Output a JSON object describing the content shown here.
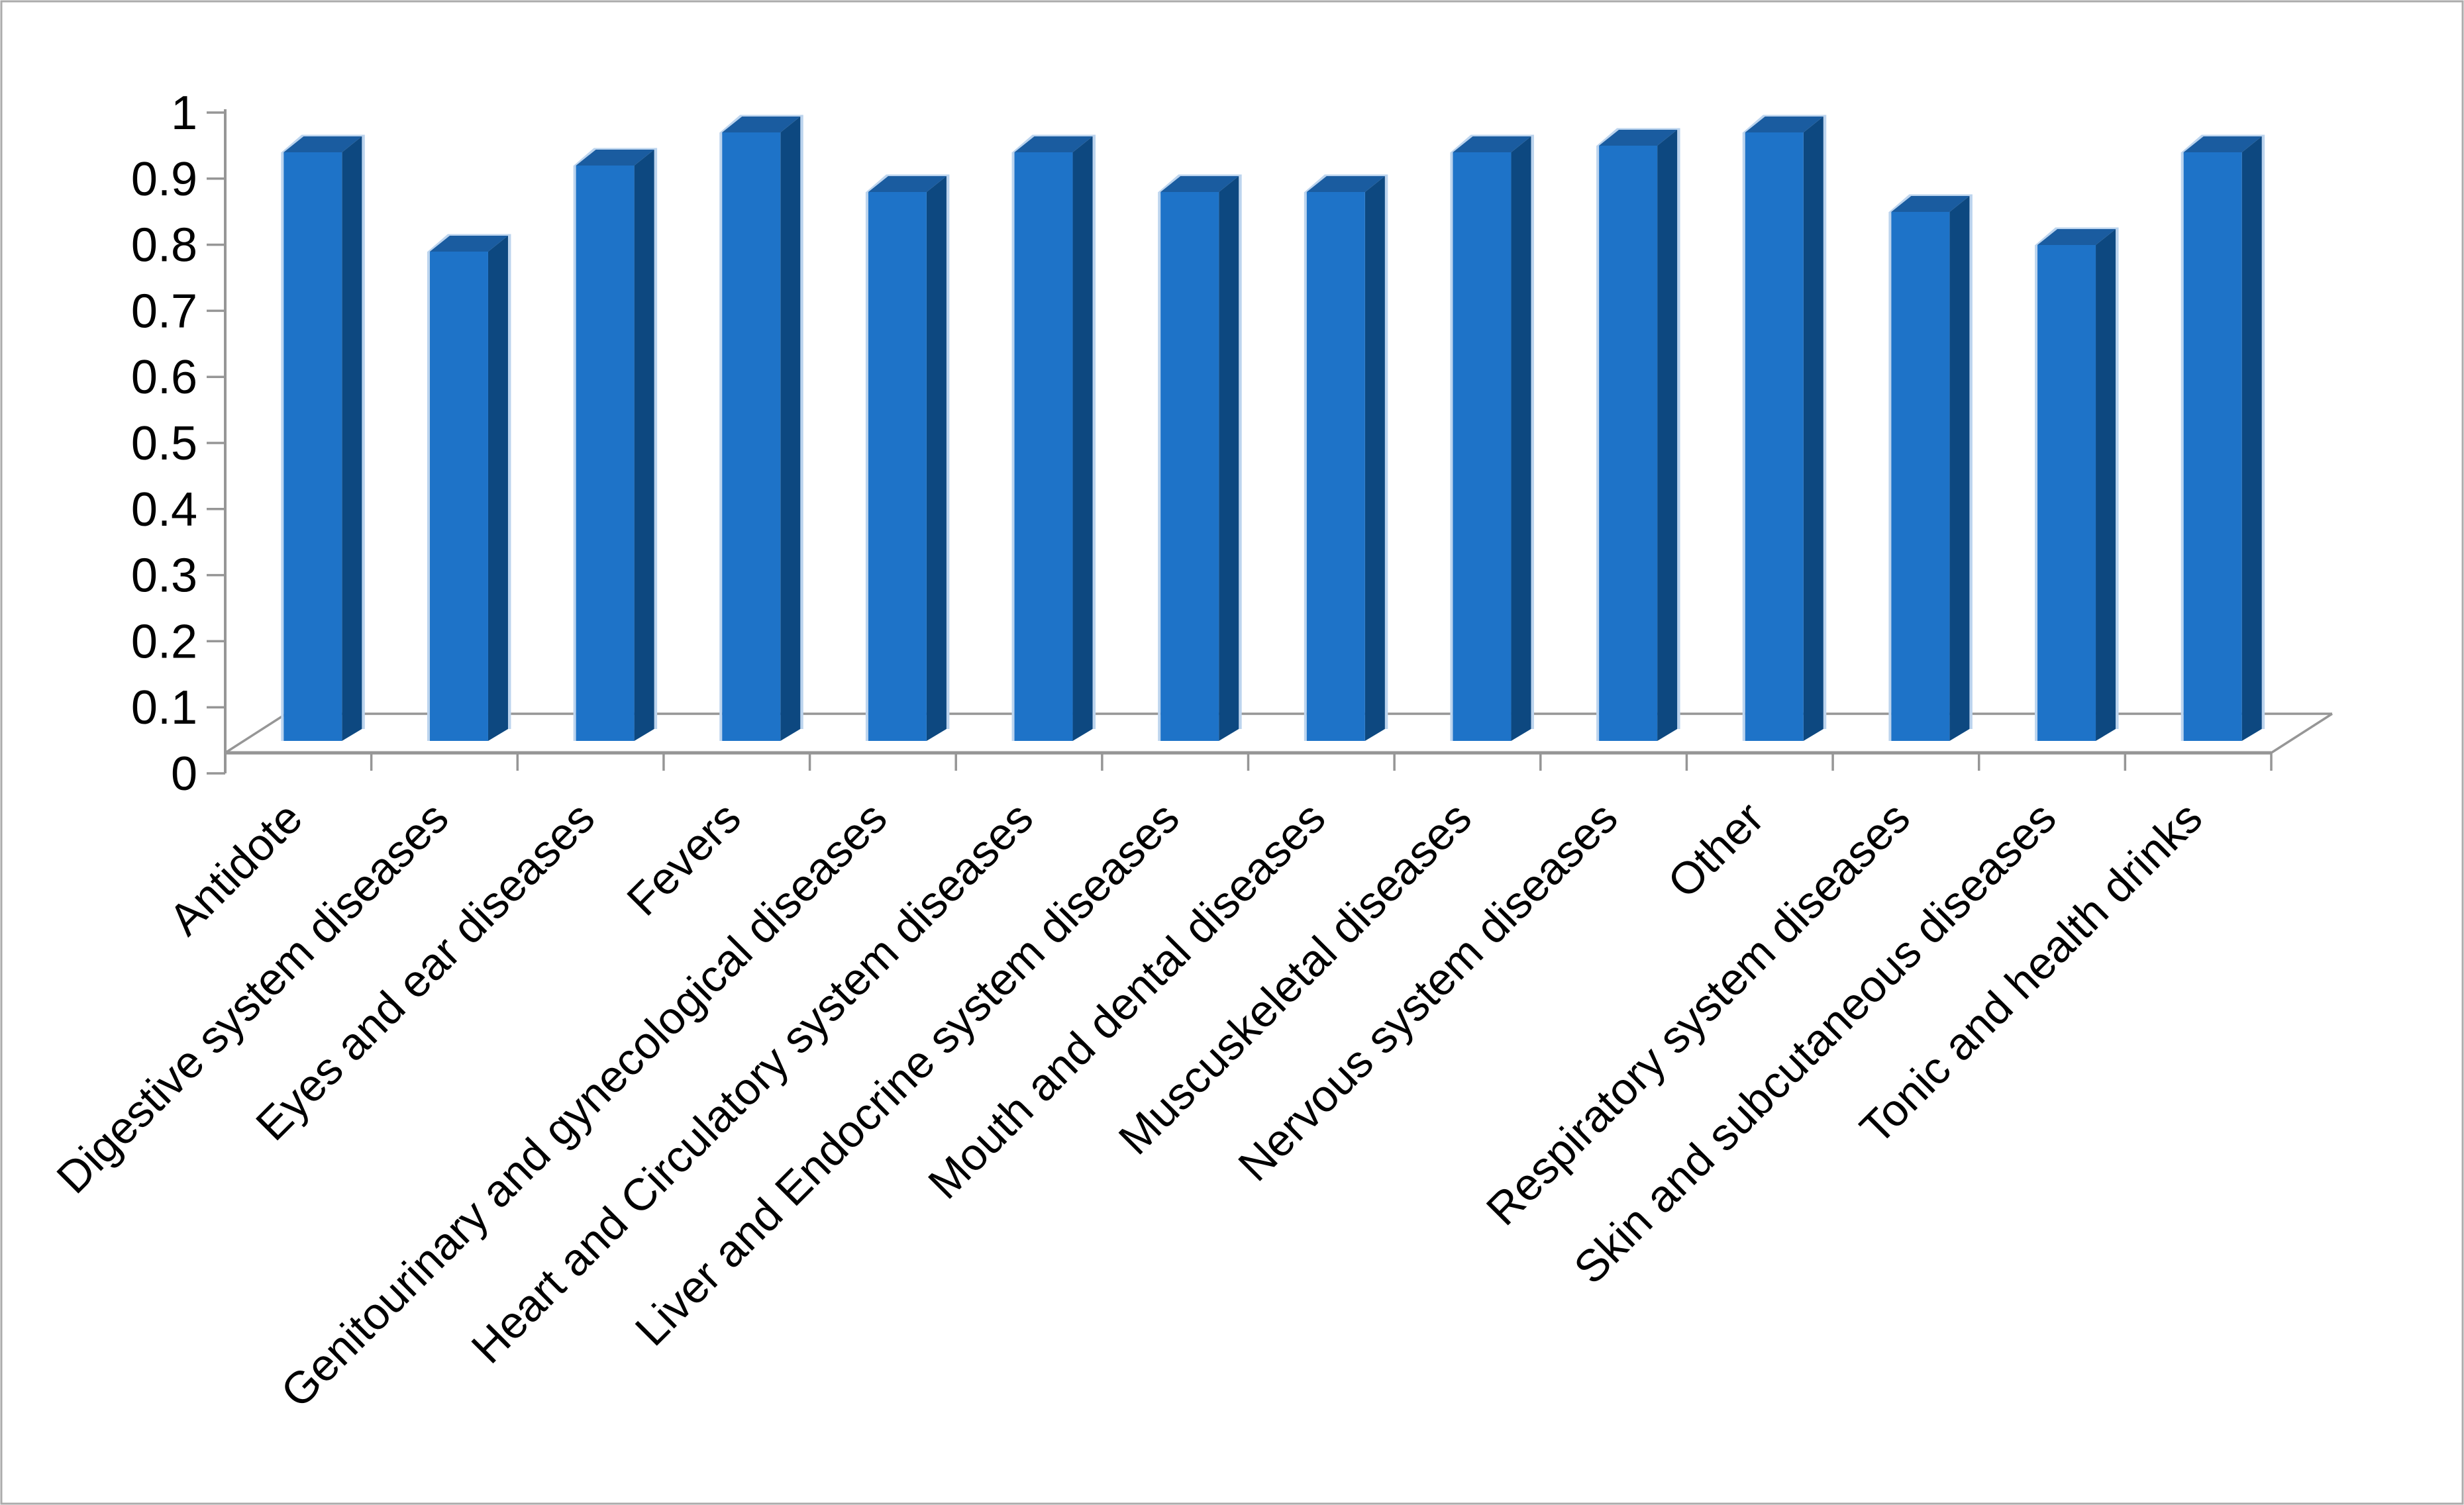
{
  "chart_data": {
    "type": "bar",
    "style": "3d-column",
    "title": "",
    "xlabel": "",
    "ylabel": "",
    "categories": [
      "Antidote",
      "Digestive system diseases",
      "Eyes and ear diseases",
      "Fevers",
      "Genitourinary and gynecological diseases",
      "Heart and Circulatory system diseases",
      "Liver and Endocrine system diseases",
      "Mouth and dental diseases",
      "Muscuskeletal diseases",
      "Nervous system diseases",
      "Other",
      "Respiratory system diseases",
      "Skin and subcutaneous diseases",
      "Tonic and health drinks"
    ],
    "values": [
      0.94,
      0.79,
      0.92,
      0.97,
      0.88,
      0.94,
      0.88,
      0.88,
      0.94,
      0.95,
      0.97,
      0.85,
      0.8,
      0.94
    ],
    "ylim": [
      0,
      1
    ],
    "ytick_step": 0.1,
    "ytick_labels": [
      "1",
      "0.9",
      "0.8",
      "0.7",
      "0.6",
      "0.5",
      "0.4",
      "0.3",
      "0.2",
      "0.1",
      "0"
    ],
    "x_tick_label_rotation_deg": 45,
    "grid": "off",
    "legend": "none",
    "colors": {
      "bar_front": "#1E73C8",
      "bar_top": "#1A5CA0",
      "bar_side": "#0D4880",
      "bar_highlight": "#BCD4EE",
      "axis_line": "#969696",
      "text": "#000000",
      "border": "#ABABAB",
      "background": "#FFFFFF"
    }
  }
}
